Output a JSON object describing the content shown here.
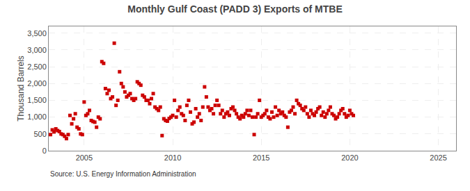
{
  "chart_data": {
    "type": "scatter",
    "title": "Monthly Gulf Coast (PADD 3) Exports of MTBE",
    "ylabel": "Thousand Barrels",
    "source": "Source: U.S. Energy Information Administration",
    "color": "#cc0000",
    "marker": "square",
    "grid": true,
    "xlim": [
      2003,
      2026
    ],
    "ylim": [
      0,
      3700
    ],
    "xticks": [
      2005,
      2010,
      2015,
      2020,
      2025
    ],
    "yticks": [
      0,
      500,
      {
        "value": 1000,
        "label": "1,000"
      },
      {
        "value": 1500,
        "label": "1,500"
      },
      {
        "value": 2000,
        "label": "2,000"
      },
      {
        "value": 2500,
        "label": "2,500"
      },
      {
        "value": 3000,
        "label": "3,000"
      },
      {
        "value": 3500,
        "label": "3,500"
      }
    ],
    "x": [
      2003.1,
      2003.2,
      2003.3,
      2003.4,
      2003.5,
      2003.6,
      2003.7,
      2003.8,
      2003.9,
      2004.0,
      2004.1,
      2004.2,
      2004.3,
      2004.4,
      2004.5,
      2004.6,
      2004.7,
      2004.8,
      2004.9,
      2005.0,
      2005.1,
      2005.2,
      2005.3,
      2005.4,
      2005.5,
      2005.6,
      2005.7,
      2005.8,
      2005.9,
      2006.0,
      2006.1,
      2006.2,
      2006.3,
      2006.4,
      2006.5,
      2006.6,
      2006.7,
      2006.8,
      2006.9,
      2007.0,
      2007.1,
      2007.2,
      2007.3,
      2007.4,
      2007.5,
      2007.6,
      2007.7,
      2007.8,
      2007.9,
      2008.0,
      2008.1,
      2008.2,
      2008.3,
      2008.4,
      2008.5,
      2008.6,
      2008.7,
      2008.8,
      2008.9,
      2009.0,
      2009.1,
      2009.2,
      2009.3,
      2009.4,
      2009.5,
      2009.6,
      2009.7,
      2009.8,
      2009.9,
      2010.0,
      2010.1,
      2010.2,
      2010.3,
      2010.4,
      2010.5,
      2010.6,
      2010.7,
      2010.8,
      2010.9,
      2011.0,
      2011.1,
      2011.2,
      2011.3,
      2011.4,
      2011.5,
      2011.6,
      2011.7,
      2011.8,
      2011.9,
      2012.0,
      2012.1,
      2012.2,
      2012.3,
      2012.4,
      2012.5,
      2012.6,
      2012.7,
      2012.8,
      2012.9,
      2013.0,
      2013.1,
      2013.2,
      2013.3,
      2013.4,
      2013.5,
      2013.6,
      2013.7,
      2013.8,
      2013.9,
      2014.0,
      2014.1,
      2014.2,
      2014.3,
      2014.4,
      2014.5,
      2014.6,
      2014.7,
      2014.8,
      2014.9,
      2015.0,
      2015.1,
      2015.2,
      2015.3,
      2015.4,
      2015.5,
      2015.6,
      2015.7,
      2015.8,
      2015.9,
      2016.0,
      2016.1,
      2016.2,
      2016.3,
      2016.4,
      2016.5,
      2016.6,
      2016.7,
      2016.8,
      2016.9,
      2017.0,
      2017.1,
      2017.2,
      2017.3,
      2017.4,
      2017.5,
      2017.6,
      2017.7,
      2017.8,
      2017.9,
      2018.0,
      2018.1,
      2018.2,
      2018.3,
      2018.4,
      2018.5,
      2018.6,
      2018.7,
      2018.8,
      2018.9,
      2019.0,
      2019.1,
      2019.2,
      2019.3,
      2019.4,
      2019.5,
      2019.6,
      2019.7,
      2019.8,
      2019.9,
      2020.0,
      2020.1,
      2020.2
    ],
    "values": [
      480,
      620,
      560,
      650,
      600,
      570,
      500,
      480,
      430,
      360,
      480,
      1050,
      800,
      950,
      1100,
      700,
      650,
      500,
      480,
      1450,
      1050,
      1100,
      1200,
      900,
      870,
      850,
      700,
      1000,
      950,
      2650,
      2600,
      1850,
      1700,
      1800,
      1550,
      1600,
      3200,
      1350,
      1500,
      2350,
      2000,
      1900,
      1750,
      1600,
      1650,
      1700,
      1550,
      1500,
      1550,
      2050,
      2000,
      1950,
      1650,
      1600,
      1500,
      1500,
      1400,
      1550,
      1700,
      1300,
      1250,
      1200,
      1300,
      450,
      950,
      900,
      880,
      960,
      1000,
      1050,
      1500,
      1000,
      1200,
      1300,
      1100,
      1050,
      900,
      1350,
      1500,
      1150,
      800,
      850,
      1250,
      1000,
      1100,
      900,
      1300,
      1900,
      1600,
      1300,
      1200,
      1250,
      1100,
      1350,
      1500,
      1350,
      1100,
      1200,
      1000,
      1100,
      1150,
      1050,
      1250,
      1300,
      1200,
      1100,
      1000,
      950,
      1050,
      1000,
      1100,
      1200,
      1050,
      1200,
      1000,
      480,
      1000,
      1100,
      1500,
      1000,
      1050,
      1100,
      1200,
      1000,
      950,
      1150,
      1000,
      1300,
      1050,
      1200,
      1100,
      1150,
      1050,
      1000,
      700,
      1150,
      1200,
      1300,
      1100,
      1500,
      1400,
      1350,
      1250,
      1200,
      1300,
      1100,
      1000,
      1200,
      1100,
      1050,
      1150,
      1250,
      1300,
      1050,
      1150,
      1000,
      1100,
      1200,
      1300,
      1100,
      1050,
      950,
      1000,
      1100,
      1200,
      1250,
      1100,
      1000,
      1050,
      1200,
      1100,
      1050
    ]
  }
}
